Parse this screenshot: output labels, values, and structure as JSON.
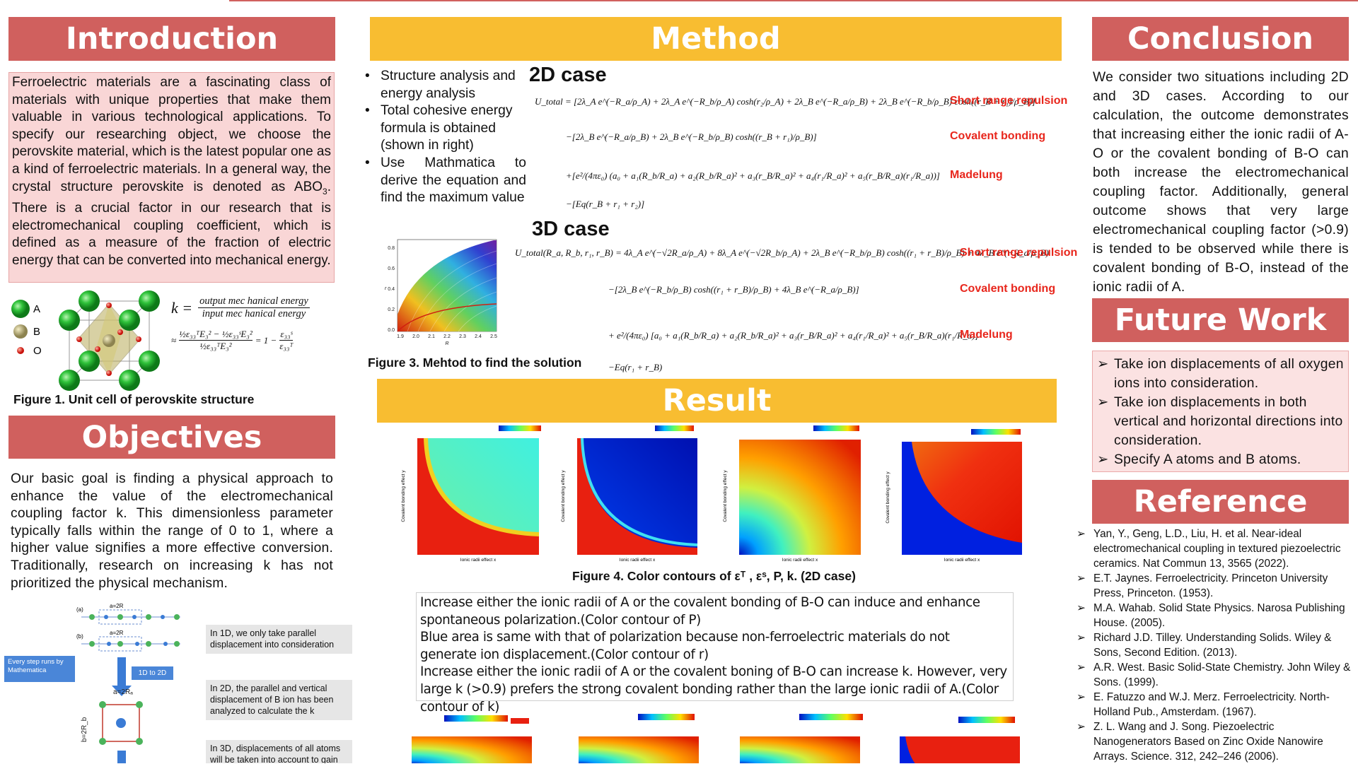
{
  "introduction": {
    "heading": "Introduction",
    "text_before": "Ferroelectric materials are a fascinating class of materials with unique properties that make them valuable in various technological applications. To specify our researching object, we choose the perovskite material, which is the latest popular one as a kind of ferroelectric materials. In a general way, the crystal structure perovskite is denoted as ABO",
    "subscript": "3",
    "text_after": ". There is a crucial factor in our research that is electromechanical coupling coefficient, which is defined as a measure of the fraction of electric energy that can be converted into mechanical energy."
  },
  "figure1": {
    "legend": [
      "A",
      "B",
      "O"
    ],
    "eq_lhs": "k =",
    "eq_num": "output mec hanical energy",
    "eq_den": "input mec hanical energy",
    "approx": "≈",
    "eq2_num": "½ε₃₃ᵀE₃² − ½ε₃₃ˢE₃²",
    "eq2_den": "½ε₃₃ᵀE₃²",
    "eq2_rhs": "= 1 −",
    "rhs_num": "ε₃₃ˢ",
    "rhs_den": "ε₃₃ᵀ",
    "caption": "Figure 1. Unit cell of  perovskite structure"
  },
  "objectives": {
    "heading": "Objectives",
    "text": "Our basic goal is finding a physical approach to enhance the value of the electromechanical coupling factor k. This dimensionless parameter typically falls within the range of 0 to 1, where a higher value signifies a more effective conversion. Traditionally, research on increasing k has not prioritized the physical mechanism."
  },
  "diagram": {
    "label_a": "(a)",
    "label_b": "(b)",
    "lattice_a": "a=2R",
    "lattice_b": "a=2R",
    "lattice_2d_a": "a=2Rₐ",
    "lattice_2d_b": "b=2R_b",
    "step_note": "Every step runs by Mathematica",
    "arrow_label": "1D to 2D",
    "notes": [
      "In 1D, we only take parallel displacement into consideration",
      "In 2D, the parallel and vertical displacement of B ion has been analyzed to calculate the k",
      "In 3D, displacements of all atoms will be taken into account to gain"
    ]
  },
  "method": {
    "heading": "Method",
    "bullets": [
      "Structure analysis and energy analysis",
      "Total cohesive energy formula is obtained (shown in right)",
      "Use Mathmatica to derive the equation and find the maximum value"
    ],
    "case_2d": "2D case",
    "eq_2d": [
      "U_total = [2λ_A e^(−R_a/ρ_A) + 2λ_A e^(−R_b/ρ_A) cosh(r₂/ρ_A) + 2λ_B e^(−R_a/ρ_B) + 2λ_B e^(−R_b/ρ_B) cosh((r_B + r₁)/ρ_B)]",
      "−[2λ_B e^(−R_a/ρ_B) + 2λ_B e^(−R_b/ρ_B) cosh((r_B + r₁)/ρ_B)]",
      "+[e²/(4πε₀) (a₀ + a₁(R_b/R_a) + a₂(R_b/R_a)² + a₃(r_B/R_a)² + a₄(r₁/R_a)² + a₅(r_B/R_a)(r₁/R_a))]",
      "−[Eq(r_B + r₁ + r₂)]"
    ],
    "labels_2d": [
      "Short range repulsion",
      "Covalent bonding",
      "Madelung"
    ],
    "case_3d": "3D case",
    "eq_3d": [
      "U_total(R_a, R_b, r₁, r_B) = 4λ_A e^(−√2R_a/ρ_A) + 8λ_A e^(−√2R_b/ρ_A) + 2λ_B e^(−R_b/ρ_B) cosh((r₁ + r_B)/ρ_B) + 4λ_B e^(−R_a/ρ_B)",
      "−[2λ_B e^(−R_b/ρ_B) cosh((r₁ + r_B)/ρ_B) + 4λ_B e^(−R_a/ρ_B)]",
      "+ e²/(4πε₀) [a₀ + a₁(R_b/R_a) + a₂(R_b/R_a)² + a₃(r_B/R_a)² + a₄(r₁/R_a)² + a₅(r_B/R_a)(r₁/R_a)]",
      "−Eq(r₁ + r_B)"
    ],
    "labels_3d": [
      "Short range repulsion",
      "Covalent bonding",
      "Madelung"
    ],
    "figure3": {
      "caption": "Figure 3. Mehtod to find the solution",
      "x_label": "R",
      "y_label": "r",
      "xticks": [
        "1.9",
        "2.0",
        "2.1",
        "2.2",
        "2.3",
        "2.4",
        "2.5"
      ],
      "yticks": [
        "0.8",
        "0.6",
        "0.4",
        "0.2",
        "0.0"
      ]
    }
  },
  "result": {
    "heading": "Result",
    "figure4": {
      "caption": "Figure 4. Color contours of εᵀ , εˢ, P, k. (2D case)",
      "y_label": "Covalent bonding effect y",
      "x_label": "Ionic radii effect x"
    },
    "paragraphs": [
      "Increase either the ionic radii of A or the covalent bonding of B-O can induce and enhance spontaneous polarization.(Color contour of P)",
      "Blue area is same with that of polarization because non-ferroelectric materials do not generate ion displacement.(Color contour of r)",
      "Increase either the ionic radii of A or the covalent boning of B-O can increase k. However, very large k (>0.9) prefers the strong covalent bonding rather than the large ionic radii of A.(Color contour of k)"
    ]
  },
  "conclusion": {
    "heading": "Conclusion",
    "text": "We consider two situations including 2D and 3D cases. According to our calculation, the outcome demonstrates that increasing either the ionic radii of A-O or the covalent bonding of B-O can both increase the electromechanical coupling factor. Additionally, general outcome shows that very large electromechanical coupling factor (>0.9) is tended to be observed while there is covalent bonding of B-O, instead of the ionic radii of A."
  },
  "future_work": {
    "heading": "Future Work",
    "items": [
      "Take ion displacements of all oxygen ions into consideration.",
      "Take ion displacements in both vertical and horizontal directions into consideration.",
      "Specify A atoms and B atoms."
    ]
  },
  "reference": {
    "heading": "Reference",
    "items": [
      "Yan, Y., Geng, L.D., Liu, H. et al. Near-ideal electromechanical coupling in textured piezoelectric ceramics. Nat Commun 13, 3565 (2022).",
      "E.T. Jaynes. Ferroelectricity.  Princeton University Press, Princeton. (1953).",
      "M.A. Wahab. Solid State Physics. Narosa Publishing House. (2005).",
      "Richard J.D. Tilley. Understanding Solids. Wiley & Sons, Second Edition. (2013).",
      "A.R. West. Basic Solid-State Chemistry.  John Wiley & Sons. (1999).",
      "E. Fatuzzo and W.J. Merz.  Ferroelectricity. North-Holland Pub., Amsterdam. (1967).",
      "Z. L. Wang and J. Song.  Piezoelectric Nanogenerators Based on Zinc Oxide Nanowire Arrays. Science. 312, 242–246 (2006)."
    ]
  }
}
